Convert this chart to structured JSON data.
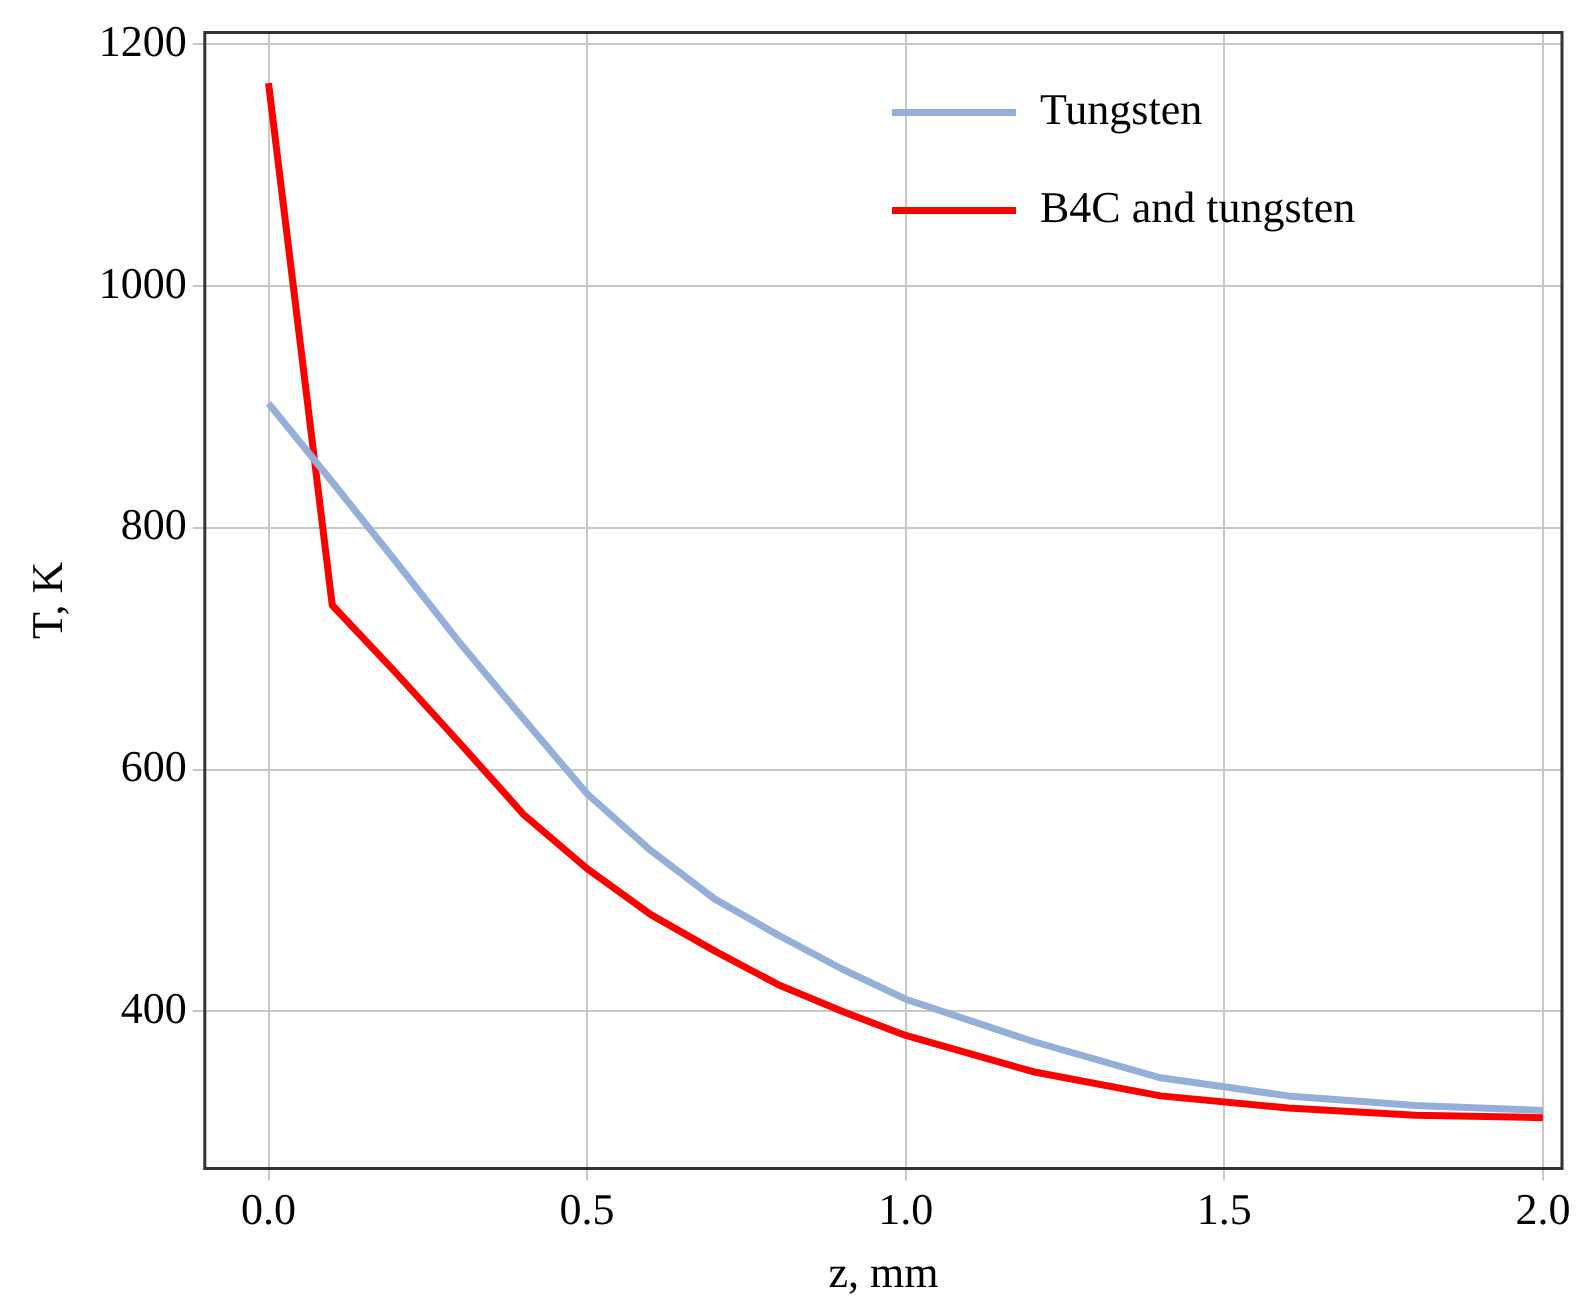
{
  "chart_data": {
    "type": "line",
    "xlabel": "z, mm",
    "ylabel": "T, K",
    "xlim": [
      -0.1,
      2.03
    ],
    "xticks": [
      {
        "value": 0,
        "label": "0.0"
      },
      0.5,
      {
        "value": 1,
        "label": "1.0"
      },
      1.5,
      {
        "value": 2,
        "label": "2.0"
      }
    ],
    "ylim": [
      270,
      1210
    ],
    "yticks": [
      400,
      600,
      800,
      1000,
      1200
    ],
    "grid": true,
    "legend": "top right",
    "marker": "none",
    "line_style": "solid",
    "series": [
      {
        "name": "Tungsten",
        "color": "#94afd8",
        "x": [
          0,
          0.1,
          0.2,
          0.3,
          0.4,
          0.5,
          0.6,
          0.7,
          0.8,
          0.9,
          1.0,
          1.2,
          1.4,
          1.6,
          1.8,
          2.0
        ],
        "values": [
          903,
          838,
          772,
          705,
          642,
          580,
          533,
          493,
          463,
          435,
          410,
          375,
          345,
          330,
          322,
          318
        ]
      },
      {
        "name": "B4C and tungsten",
        "color": "#ff0000",
        "x": [
          0,
          0.1,
          0.2,
          0.3,
          0.4,
          0.5,
          0.6,
          0.7,
          0.8,
          0.9,
          1.0,
          1.2,
          1.4,
          1.6,
          1.8,
          2.0
        ],
        "values": [
          1168,
          736,
          680,
          622,
          563,
          518,
          480,
          450,
          422,
          400,
          380,
          350,
          330,
          320,
          314,
          312
        ]
      }
    ]
  }
}
